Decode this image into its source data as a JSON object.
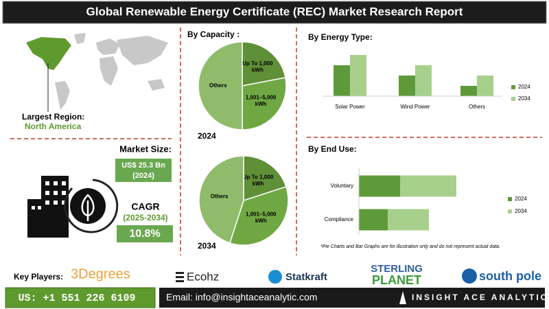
{
  "header": {
    "title": "Global Renewable Energy Certificate (REC) Market Research Report"
  },
  "region": {
    "label": "Largest Region:",
    "value": "North America"
  },
  "market_size": {
    "label": "Market Size:",
    "value": "US$ 25.3 Bn",
    "year": "(2024)"
  },
  "cagr": {
    "label": "CAGR",
    "period": "(2025-2034)",
    "value": "10.8%"
  },
  "chart_data": [
    {
      "type": "pie",
      "title": "By Capacity :",
      "label": "2024",
      "categories": [
        "Up To 1,000 kWh",
        "1,001–5,000 kWh",
        "Others"
      ],
      "values": [
        22,
        28,
        50
      ],
      "colors": [
        "#5f8f37",
        "#6fa843",
        "#8fbb6b"
      ]
    },
    {
      "type": "pie",
      "label": "2034",
      "categories": [
        "Up To 1,000 kWh",
        "1,001–5,000 kWh",
        "Others"
      ],
      "values": [
        20,
        35,
        45
      ],
      "colors": [
        "#5f8f37",
        "#6fa843",
        "#8fbb6b"
      ]
    },
    {
      "type": "bar",
      "title": "By Energy Type:",
      "categories": [
        "Solar Power",
        "Wind Power",
        "Others"
      ],
      "series": [
        {
          "name": "2024",
          "color": "#5f9a3a",
          "values": [
            45,
            30,
            15
          ]
        },
        {
          "name": "2034",
          "color": "#a8d08d",
          "values": [
            60,
            45,
            30
          ]
        }
      ],
      "ylim": [
        0,
        70
      ],
      "legend": "right"
    },
    {
      "type": "barh-stacked",
      "title": "By End Use:",
      "categories": [
        "Voluntary",
        "Compliance"
      ],
      "series": [
        {
          "name": "2024",
          "color": "#5f9a3a",
          "values": [
            60,
            42
          ]
        },
        {
          "name": "2034",
          "color": "#a8d08d",
          "values": [
            82,
            60
          ]
        }
      ],
      "xlim": [
        0,
        150
      ],
      "legend": "right"
    }
  ],
  "note": "*Pie Charts and Bar Graphs are for illustration only and do not represent actual data.",
  "key_players": {
    "label": "Key Players:",
    "names": [
      "3Degrees",
      "Ecohz",
      "Statkraft",
      [
        "STERLING",
        "PLANET"
      ],
      "south pole"
    ]
  },
  "footer": {
    "phone": "US: +1 551 226 6109",
    "email": "Email: info@insightaceanalytic.com",
    "brand": "INSIGHT ACE ANALYTIC"
  }
}
